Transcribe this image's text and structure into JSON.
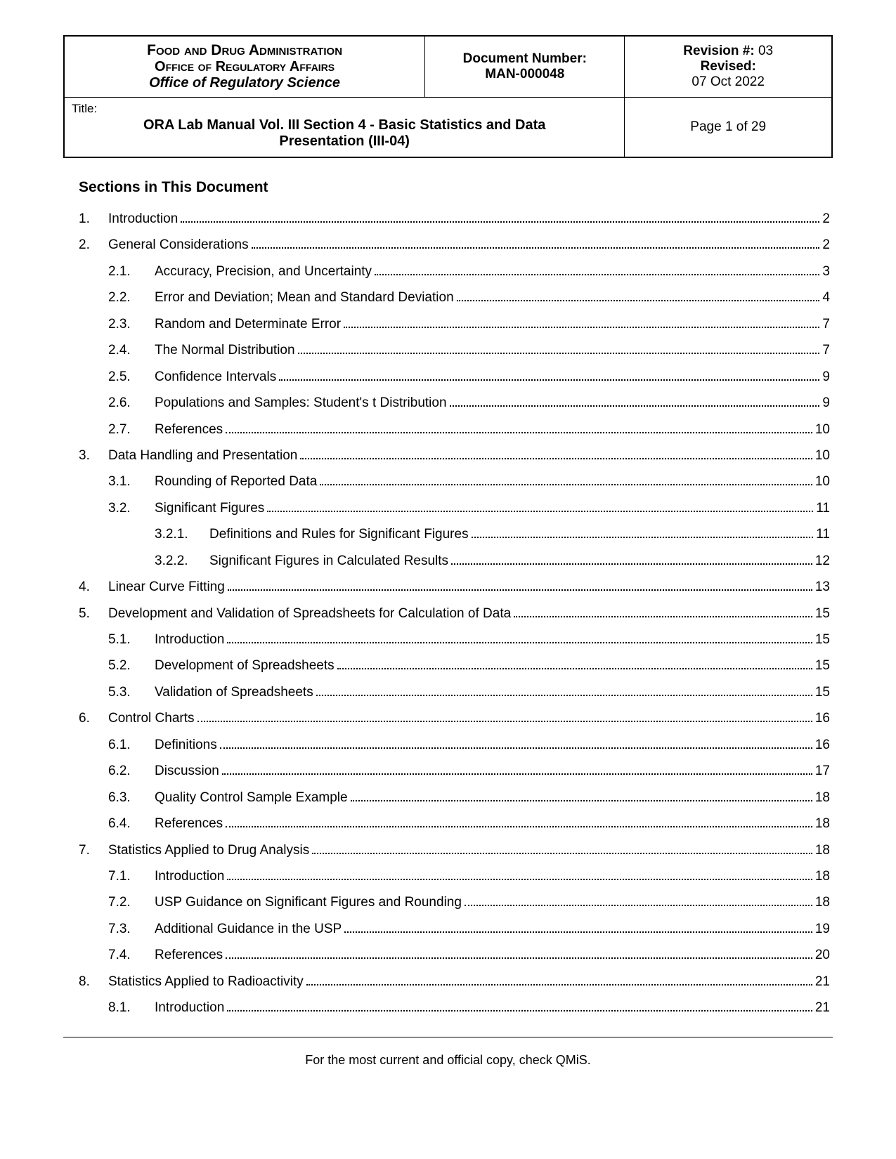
{
  "header": {
    "org_line1": "Food and Drug Administration",
    "org_line2": "Office of Regulatory Affairs",
    "org_line3": "Office of Regulatory Science",
    "doc_number_label": "Document Number:",
    "doc_number": "MAN-000048",
    "revision_label": "Revision #:",
    "revision_value": "03",
    "revised_label": "Revised:",
    "revised_date": "07 Oct 2022",
    "title_label": "Title:",
    "title_text": "ORA Lab Manual Vol. III Section 4 - Basic Statistics and Data Presentation (III-04)",
    "page_text": "Page 1 of 29"
  },
  "sections_heading": "Sections in This Document",
  "toc": [
    {
      "level": 0,
      "num": "1.",
      "title": "Introduction",
      "page": "2"
    },
    {
      "level": 0,
      "num": "2.",
      "title": "General Considerations",
      "page": "2"
    },
    {
      "level": 1,
      "num": "2.1.",
      "title": "Accuracy, Precision, and Uncertainty",
      "page": "3"
    },
    {
      "level": 1,
      "num": "2.2.",
      "title": "Error and Deviation; Mean and Standard Deviation",
      "page": "4"
    },
    {
      "level": 1,
      "num": "2.3.",
      "title": "Random and Determinate Error",
      "page": "7"
    },
    {
      "level": 1,
      "num": "2.4.",
      "title": "The Normal Distribution",
      "page": "7"
    },
    {
      "level": 1,
      "num": "2.5.",
      "title": "Confidence Intervals",
      "page": "9"
    },
    {
      "level": 1,
      "num": "2.6.",
      "title": "Populations and Samples: Student's t Distribution",
      "page": "9"
    },
    {
      "level": 1,
      "num": "2.7.",
      "title": "References",
      "page": "10"
    },
    {
      "level": 0,
      "num": "3.",
      "title": "Data Handling and Presentation",
      "page": "10"
    },
    {
      "level": 1,
      "num": "3.1.",
      "title": "Rounding of Reported Data",
      "page": "10"
    },
    {
      "level": 1,
      "num": "3.2.",
      "title": "Significant Figures",
      "page": "11"
    },
    {
      "level": 2,
      "num": "3.2.1.",
      "title": "Definitions and Rules for Significant Figures",
      "page": "11"
    },
    {
      "level": 2,
      "num": "3.2.2.",
      "title": "Significant Figures in Calculated Results",
      "page": "12"
    },
    {
      "level": 0,
      "num": "4.",
      "title": "Linear Curve Fitting",
      "page": "13"
    },
    {
      "level": 0,
      "num": "5.",
      "title": "Development and Validation of Spreadsheets for Calculation of Data",
      "page": "15"
    },
    {
      "level": 1,
      "num": "5.1.",
      "title": "Introduction",
      "page": "15"
    },
    {
      "level": 1,
      "num": "5.2.",
      "title": "Development of Spreadsheets",
      "page": "15"
    },
    {
      "level": 1,
      "num": "5.3.",
      "title": "Validation of Spreadsheets",
      "page": "15"
    },
    {
      "level": 0,
      "num": "6.",
      "title": "Control Charts",
      "page": "16"
    },
    {
      "level": 1,
      "num": "6.1.",
      "title": "Definitions",
      "page": "16"
    },
    {
      "level": 1,
      "num": "6.2.",
      "title": "Discussion",
      "page": "17"
    },
    {
      "level": 1,
      "num": "6.3.",
      "title": "Quality Control Sample Example",
      "page": "18"
    },
    {
      "level": 1,
      "num": "6.4.",
      "title": "References",
      "page": "18"
    },
    {
      "level": 0,
      "num": "7.",
      "title": "Statistics Applied to Drug Analysis",
      "page": "18"
    },
    {
      "level": 1,
      "num": "7.1.",
      "title": "Introduction",
      "page": "18"
    },
    {
      "level": 1,
      "num": "7.2.",
      "title": "USP Guidance on Significant Figures and Rounding",
      "page": "18"
    },
    {
      "level": 1,
      "num": "7.3.",
      "title": "Additional Guidance in the USP",
      "page": "19"
    },
    {
      "level": 1,
      "num": "7.4.",
      "title": "References",
      "page": "20"
    },
    {
      "level": 0,
      "num": "8.",
      "title": "Statistics Applied to Radioactivity",
      "page": "21"
    },
    {
      "level": 1,
      "num": "8.1.",
      "title": "Introduction",
      "page": "21"
    }
  ],
  "footer": "For the most current and official copy, check QMiS."
}
